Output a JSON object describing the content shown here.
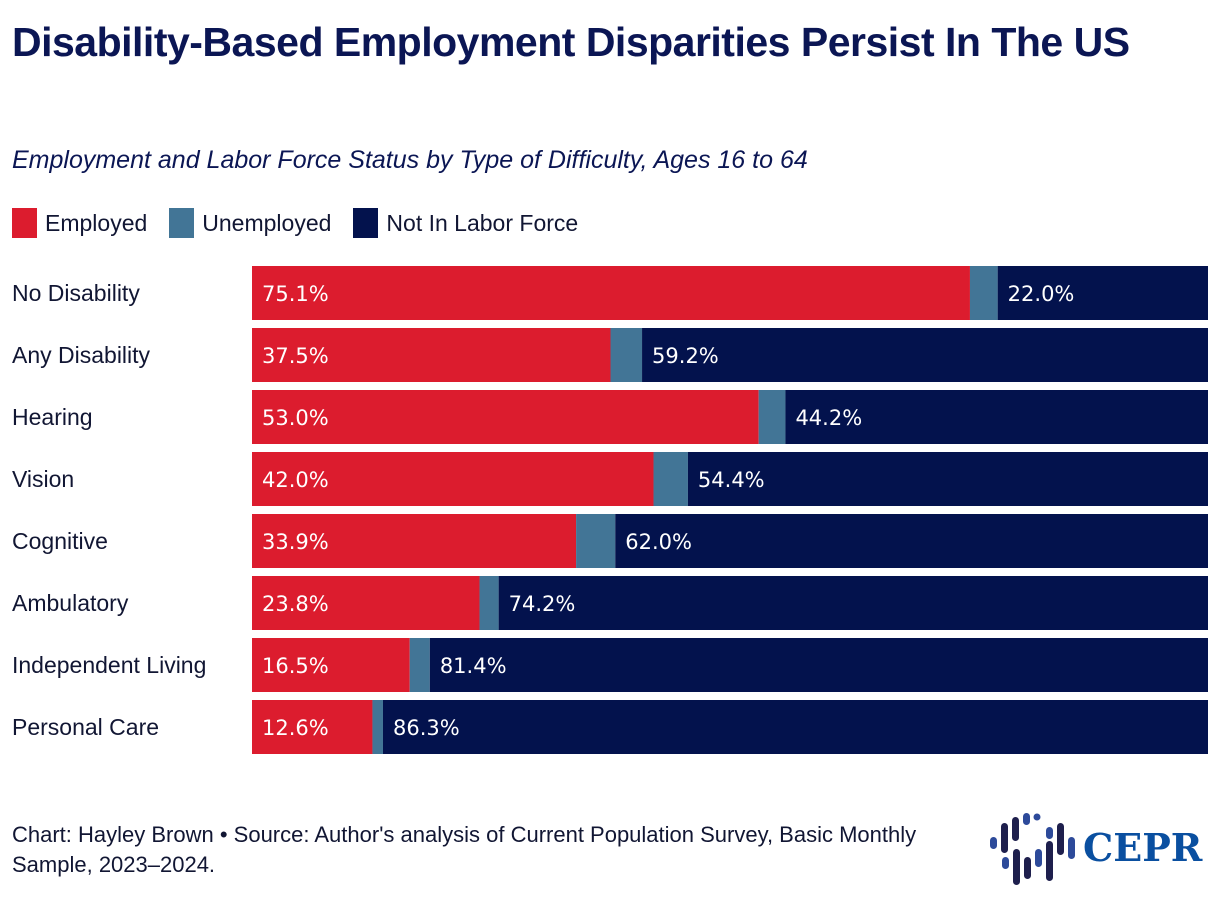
{
  "header": {
    "title": "Disability-Based Employment Disparities Persist In The US",
    "subtitle": "Employment and Labor Force Status by Type of Difficulty, Ages 16 to 64"
  },
  "legend": [
    {
      "label": "Employed",
      "color": "#dc1c2e"
    },
    {
      "label": "Unemployed",
      "color": "#427596"
    },
    {
      "label": "Not In Labor Force",
      "color": "#03124d"
    }
  ],
  "footer": {
    "text": "Chart: Hayley Brown • Source: Author's analysis of Current Population Survey, Basic Monthly Sample, 2023–2024."
  },
  "logo": {
    "text": "CEPR",
    "icon": "cepr-logo-icon"
  },
  "chart_data": {
    "type": "bar",
    "orientation": "horizontal",
    "stacked": true,
    "title": "Disability-Based Employment Disparities Persist In The US",
    "subtitle": "Employment and Labor Force Status by Type of Difficulty, Ages 16 to 64",
    "categories": [
      "No Disability",
      "Any Disability",
      "Hearing",
      "Vision",
      "Cognitive",
      "Ambulatory",
      "Independent Living",
      "Personal Care"
    ],
    "series": [
      {
        "name": "Employed",
        "color": "#dc1c2e",
        "values": [
          75.1,
          37.5,
          53.0,
          42.0,
          33.9,
          23.8,
          16.5,
          12.6
        ],
        "labels": [
          "75.1%",
          "37.5%",
          "53.0%",
          "42.0%",
          "33.9%",
          "23.8%",
          "16.5%",
          "12.6%"
        ]
      },
      {
        "name": "Unemployed",
        "color": "#427596",
        "values": [
          2.9,
          3.3,
          2.8,
          3.6,
          4.1,
          2.0,
          2.1,
          1.1
        ],
        "labels": [
          "",
          "",
          "",
          "",
          "",
          "",
          "",
          ""
        ]
      },
      {
        "name": "Not In Labor Force",
        "color": "#03124d",
        "values": [
          22.0,
          59.2,
          44.2,
          54.4,
          62.0,
          74.2,
          81.4,
          86.3
        ],
        "labels": [
          "22.0%",
          "59.2%",
          "44.2%",
          "54.4%",
          "62.0%",
          "74.2%",
          "81.4%",
          "86.3%"
        ]
      }
    ],
    "xlim": [
      0,
      100
    ],
    "grid": false,
    "legend_position": "top-left",
    "xlabel": "",
    "ylabel": ""
  }
}
